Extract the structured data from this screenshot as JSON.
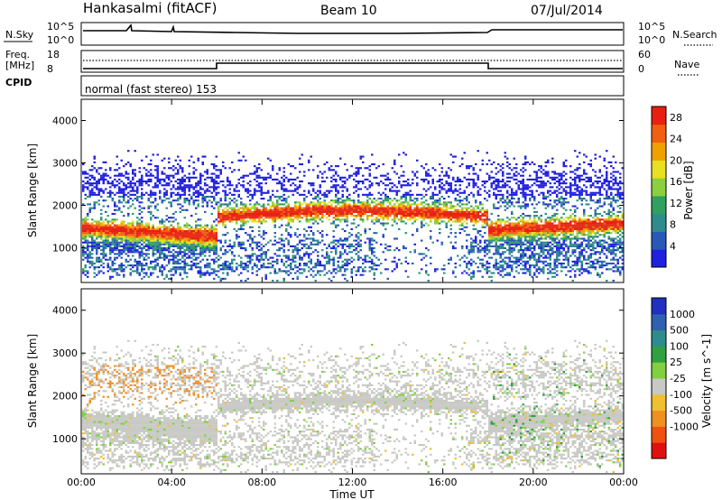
{
  "header": {
    "station": "Hankasalmi (fitACF)",
    "beam": "Beam 10",
    "date": "07/Jul/2014"
  },
  "status_panels": {
    "nsky_label": "N.Sky",
    "nsky_ticks": [
      "10^5",
      "10^0"
    ],
    "nsearch_label": "N.Search",
    "nsearch_ticks": [
      "10^5",
      "10^0"
    ],
    "freq_label_line1": "Freq.",
    "freq_label_line2": "[MHz]",
    "freq_ticks": [
      "18",
      "8"
    ],
    "nave_label": "Nave",
    "nave_ticks": [
      "60",
      "0"
    ],
    "cpid_label": "CPID",
    "cpid_text": "normal (fast stereo) 153"
  },
  "colors": {
    "power_scale": [
      "#2020e0",
      "#2a58b8",
      "#2f8c8c",
      "#30a060",
      "#8cd040",
      "#e8e020",
      "#f0a000",
      "#f06010",
      "#e82010"
    ],
    "velocity_scale": [
      "#2030c0",
      "#3060b0",
      "#2f8c8c",
      "#30a040",
      "#80d040",
      "#c8c8c4",
      "#f0c030",
      "#f09020",
      "#f05010",
      "#e01010"
    ],
    "ground_scatter": "#c8c8c4"
  },
  "chart_data": [
    {
      "type": "heatmap",
      "name": "power",
      "x_ticks": [
        "00:00",
        "04:00",
        "08:00",
        "12:00",
        "16:00",
        "20:00",
        "00:00"
      ],
      "xlabel": "Time UT",
      "ylabel": "Slant Range [km]",
      "y_ticks": [
        1000,
        2000,
        3000,
        4000
      ],
      "xlim_hours": [
        0,
        24
      ],
      "ylim_km": [
        180,
        4500
      ],
      "colorbar_label": "Power [dB]",
      "colorbar_ticks": [
        4,
        8,
        12,
        16,
        20,
        24,
        28
      ],
      "colorbar_range": [
        0,
        30
      ]
    },
    {
      "type": "heatmap",
      "name": "velocity",
      "x_ticks": [
        "00:00",
        "04:00",
        "08:00",
        "12:00",
        "16:00",
        "20:00",
        "00:00"
      ],
      "xlabel": "Time UT",
      "ylabel": "Slant Range [km]",
      "y_ticks": [
        1000,
        2000,
        3000,
        4000
      ],
      "xlim_hours": [
        0,
        24
      ],
      "ylim_km": [
        180,
        4500
      ],
      "colorbar_label": "Velocity [m s^-1]",
      "colorbar_ticks": [
        "1000",
        "500",
        "100",
        "25",
        "-25",
        "-100",
        "-500",
        "-1000"
      ]
    }
  ]
}
